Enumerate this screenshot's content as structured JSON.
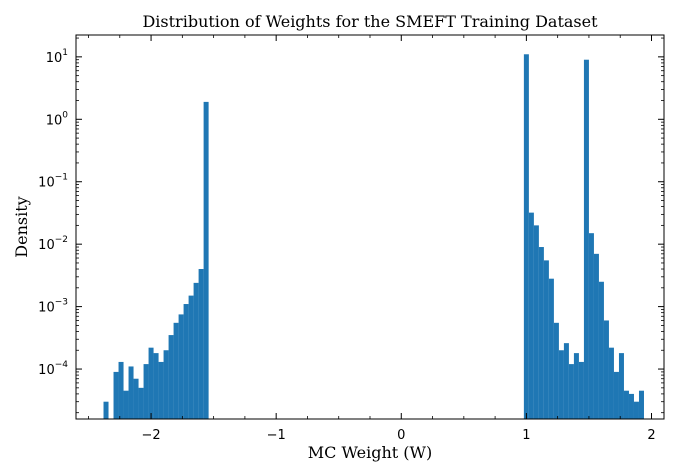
{
  "chart_data": {
    "type": "bar",
    "title": "Distribution of Weights for the SMEFT Training Dataset",
    "xlabel": "MC Weight (W)",
    "ylabel": "Density",
    "xlim": [
      -2.6,
      2.1
    ],
    "ylim_log10": [
      -4.8,
      1.35
    ],
    "y_scale": "log",
    "bar_color": "#1f77b4",
    "x_ticks": [
      {
        "value": -2,
        "label": "−2"
      },
      {
        "value": -1,
        "label": "−1"
      },
      {
        "value": 0,
        "label": "0"
      },
      {
        "value": 1,
        "label": "1"
      },
      {
        "value": 2,
        "label": "2"
      }
    ],
    "y_ticks": [
      {
        "exp": 1,
        "label": "10",
        "sup": "1"
      },
      {
        "exp": 0,
        "label": "10",
        "sup": "0"
      },
      {
        "exp": -1,
        "label": "10",
        "sup": "−1"
      },
      {
        "exp": -2,
        "label": "10",
        "sup": "−2"
      },
      {
        "exp": -3,
        "label": "10",
        "sup": "−3"
      },
      {
        "exp": -4,
        "label": "10",
        "sup": "−4"
      }
    ],
    "bin_width": 0.04,
    "bins": [
      {
        "x0": -2.38,
        "value": 3e-05
      },
      {
        "x0": -2.3,
        "value": 9e-05
      },
      {
        "x0": -2.26,
        "value": 0.00013
      },
      {
        "x0": -2.22,
        "value": 4.5e-05
      },
      {
        "x0": -2.18,
        "value": 0.00011
      },
      {
        "x0": -2.14,
        "value": 7e-05
      },
      {
        "x0": -2.1,
        "value": 5e-05
      },
      {
        "x0": -2.06,
        "value": 0.00012
      },
      {
        "x0": -2.02,
        "value": 0.00022
      },
      {
        "x0": -1.98,
        "value": 0.00018
      },
      {
        "x0": -1.94,
        "value": 0.00013
      },
      {
        "x0": -1.9,
        "value": 0.0002
      },
      {
        "x0": -1.86,
        "value": 0.00035
      },
      {
        "x0": -1.82,
        "value": 0.00055
      },
      {
        "x0": -1.78,
        "value": 0.00075
      },
      {
        "x0": -1.74,
        "value": 0.0011
      },
      {
        "x0": -1.7,
        "value": 0.0015
      },
      {
        "x0": -1.66,
        "value": 0.0024
      },
      {
        "x0": -1.62,
        "value": 0.004
      },
      {
        "x0": -1.58,
        "value": 1.9
      },
      {
        "x0": 0.98,
        "value": 11.0
      },
      {
        "x0": 1.02,
        "value": 0.032
      },
      {
        "x0": 1.06,
        "value": 0.02
      },
      {
        "x0": 1.1,
        "value": 0.009
      },
      {
        "x0": 1.14,
        "value": 0.0055
      },
      {
        "x0": 1.18,
        "value": 0.0028
      },
      {
        "x0": 1.22,
        "value": 0.00055
      },
      {
        "x0": 1.26,
        "value": 0.0002
      },
      {
        "x0": 1.3,
        "value": 0.00026
      },
      {
        "x0": 1.34,
        "value": 0.00012
      },
      {
        "x0": 1.38,
        "value": 0.00018
      },
      {
        "x0": 1.42,
        "value": 0.00013
      },
      {
        "x0": 1.46,
        "value": 9.0
      },
      {
        "x0": 1.5,
        "value": 0.015
      },
      {
        "x0": 1.54,
        "value": 0.007
      },
      {
        "x0": 1.58,
        "value": 0.0025
      },
      {
        "x0": 1.62,
        "value": 0.0006
      },
      {
        "x0": 1.66,
        "value": 0.00022
      },
      {
        "x0": 1.7,
        "value": 9e-05
      },
      {
        "x0": 1.74,
        "value": 0.00018
      },
      {
        "x0": 1.78,
        "value": 4.5e-05
      },
      {
        "x0": 1.82,
        "value": 4e-05
      },
      {
        "x0": 1.86,
        "value": 3e-05
      },
      {
        "x0": 1.9,
        "value": 4.5e-05
      }
    ]
  }
}
